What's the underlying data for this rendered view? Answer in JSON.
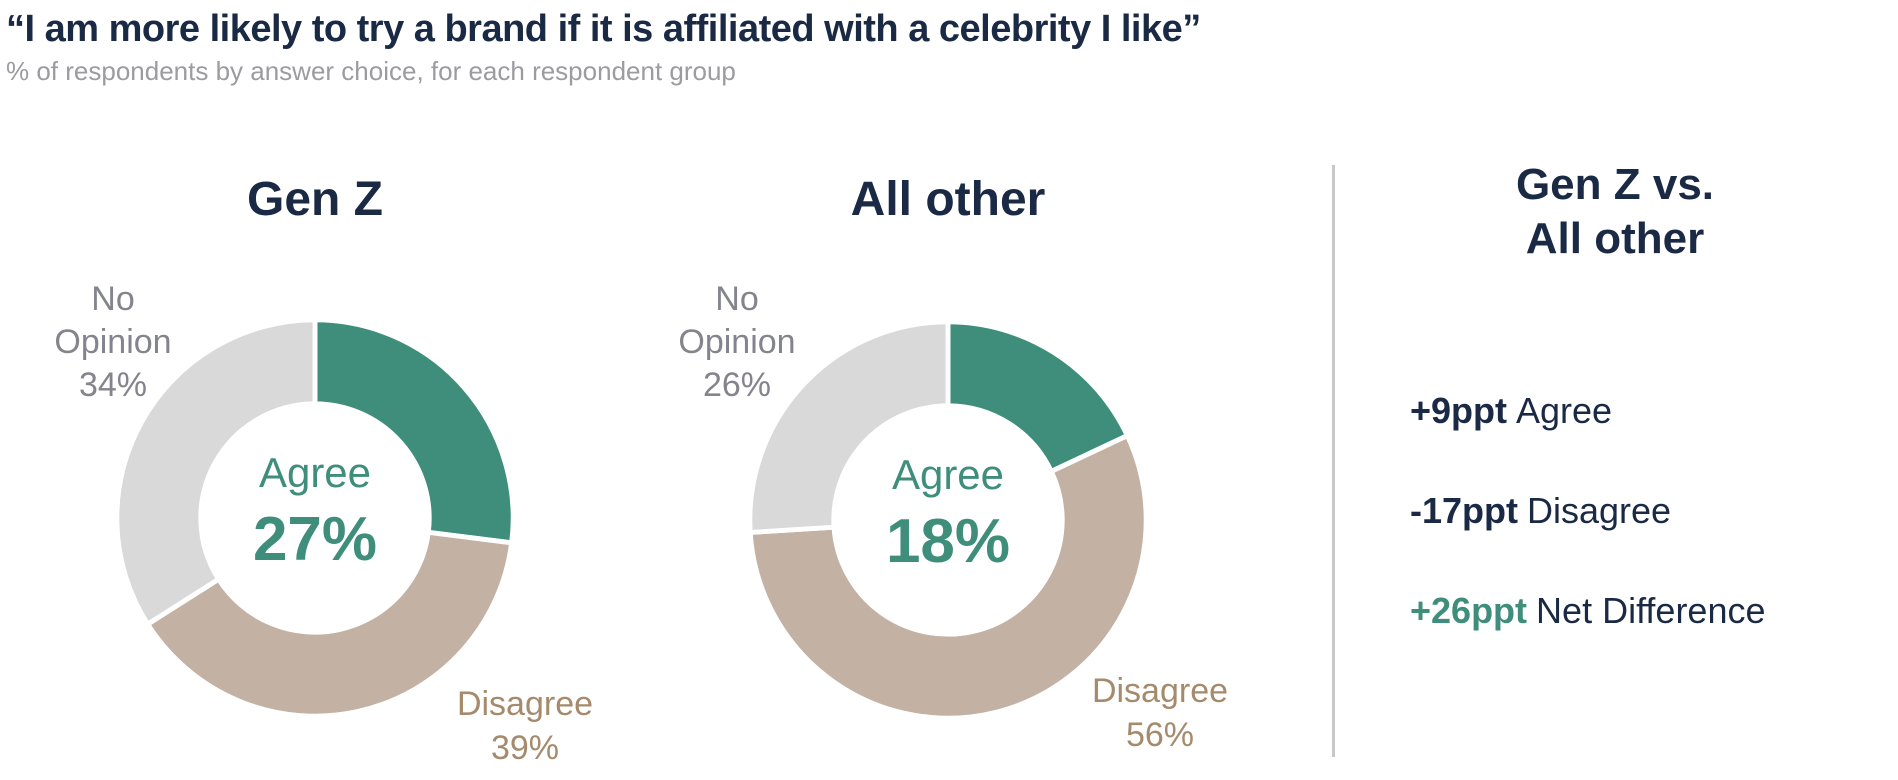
{
  "header": {
    "title": "“I am more likely to try a brand if it is affiliated with a celebrity I like”",
    "subtitle": "% of respondents by answer choice, for each respondent group"
  },
  "colors": {
    "green": "#3E8E7B",
    "tan": "#C3B2A3",
    "gray": "#D9D9D9",
    "navy": "#1A2944",
    "gray_text": "#84848C",
    "tan_text": "#A58A6C",
    "divider": "#C8C8C8"
  },
  "chart_data": [
    {
      "type": "pie",
      "donut": true,
      "title": "Gen Z",
      "start_angle_deg": 0,
      "direction": "clockwise",
      "slices": [
        {
          "label": "Agree",
          "value": 27,
          "color_key": "green"
        },
        {
          "label": "Disagree",
          "value": 39,
          "color_key": "tan"
        },
        {
          "label": "No Opinion",
          "value": 34,
          "color_key": "gray"
        }
      ],
      "center_label": "Agree",
      "center_value": "27%"
    },
    {
      "type": "pie",
      "donut": true,
      "title": "All other",
      "start_angle_deg": 0,
      "direction": "clockwise",
      "slices": [
        {
          "label": "Agree",
          "value": 18,
          "color_key": "green"
        },
        {
          "label": "Disagree",
          "value": 56,
          "color_key": "tan"
        },
        {
          "label": "No Opinion",
          "value": 26,
          "color_key": "gray"
        }
      ],
      "center_label": "Agree",
      "center_value": "18%"
    }
  ],
  "callouts": {
    "genz_no_opinion": {
      "l1": "No",
      "l2": "Opinion",
      "l3": "34%"
    },
    "genz_disagree": {
      "l1": "Disagree",
      "l2": "39%"
    },
    "other_no_opinion": {
      "l1": "No",
      "l2": "Opinion",
      "l3": "26%"
    },
    "other_disagree": {
      "l1": "Disagree",
      "l2": "56%"
    }
  },
  "comparison": {
    "title_line1": "Gen Z vs.",
    "title_line2": "All other",
    "stats": [
      {
        "value": "+9ppt",
        "label": "Agree",
        "value_color": "navy"
      },
      {
        "value": "-17ppt",
        "label": "Disagree",
        "value_color": "navy"
      },
      {
        "value": "+26ppt",
        "label": "Net Difference",
        "value_color": "green"
      }
    ]
  }
}
